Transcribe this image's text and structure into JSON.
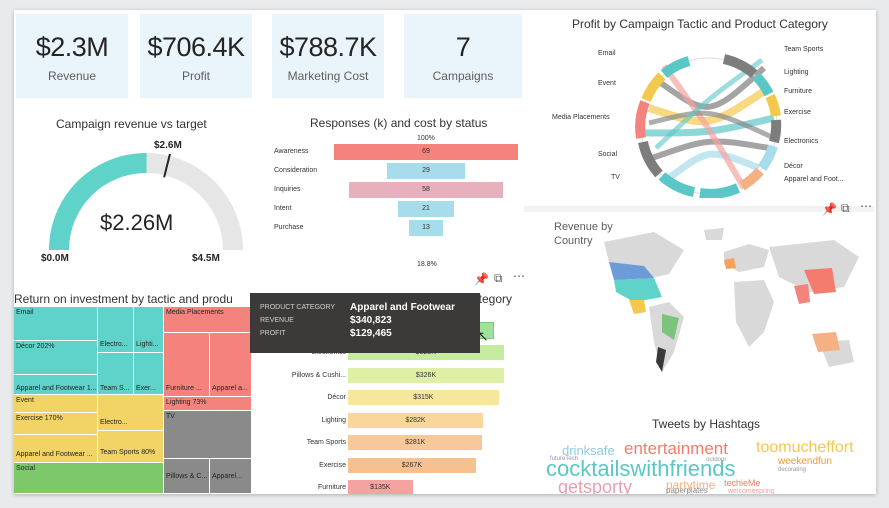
{
  "kpis": [
    {
      "value": "$2.3M",
      "label": "Revenue"
    },
    {
      "value": "$706.4K",
      "label": "Profit"
    },
    {
      "value": "$788.7K",
      "label": "Marketing Cost"
    },
    {
      "value": "7",
      "label": "Campaigns"
    }
  ],
  "gauge": {
    "title": "Campaign revenue vs target",
    "value_label": "$2.26M",
    "target_label": "$2.6M",
    "min_label": "$0.0M",
    "max_label": "$4.5M",
    "value": 2.26,
    "target": 2.6,
    "min": 0,
    "max": 4.5,
    "fill_color": "#5fd3c9",
    "track_color": "#e6e6e6"
  },
  "funnel": {
    "title": "Responses (k) and cost by status",
    "top_label": "100%",
    "bottom_label": "18.8%",
    "stages": [
      {
        "label": "Awareness",
        "value": 69,
        "color": "#f4837d"
      },
      {
        "label": "Consideration",
        "value": 29,
        "color": "#a7dceb"
      },
      {
        "label": "Inquiries",
        "value": 58,
        "color": "#e8b0bd"
      },
      {
        "label": "Intent",
        "value": 21,
        "color": "#a7dceb"
      },
      {
        "label": "Purchase",
        "value": 13,
        "color": "#a7dceb"
      }
    ]
  },
  "chord": {
    "title": "Profit by Campaign Tactic and Product Category",
    "tactics": [
      "Email",
      "Event",
      "Media Placements",
      "Social",
      "TV"
    ],
    "categories": [
      "Team Sports",
      "Lighting",
      "Furniture",
      "Exercise",
      "Electronics",
      "Décor",
      "Apparel and Foot..."
    ]
  },
  "treemap": {
    "title": "Return on investment by tactic and produ",
    "cells": [
      {
        "text": "Email"
      },
      {
        "text": "Décor 202%"
      },
      {
        "text": "Electro..."
      },
      {
        "text": "Lighti..."
      },
      {
        "text": "Apparel and Footwear 1..."
      },
      {
        "text": "Team S..."
      },
      {
        "text": "Exer..."
      },
      {
        "text": "Media Placements"
      },
      {
        "text": "Furniture ..."
      },
      {
        "text": "Apparel a..."
      },
      {
        "text": "Lighting 73%"
      },
      {
        "text": "Event"
      },
      {
        "text": "Exercise 170%"
      },
      {
        "text": "Electro..."
      },
      {
        "text": "Apparel and Footwear ..."
      },
      {
        "text": "Team Sports 80%"
      },
      {
        "text": "TV"
      },
      {
        "text": "Pillows & C..."
      },
      {
        "text": "Apparel..."
      },
      {
        "text": "Social"
      }
    ]
  },
  "barchart": {
    "title_fragment": "category",
    "bars": [
      {
        "label": "Electronics",
        "value": "$325K",
        "color": "#c5eb9e"
      },
      {
        "label": "Pillows & Cushi...",
        "value": "$326K",
        "color": "#dff0a6"
      },
      {
        "label": "Décor",
        "value": "$315K",
        "color": "#f7e79c"
      },
      {
        "label": "Lighting",
        "value": "$282K",
        "color": "#f9d79a"
      },
      {
        "label": "Team Sports",
        "value": "$281K",
        "color": "#f7c89a"
      },
      {
        "label": "Exercise",
        "value": "$267K",
        "color": "#f7c08f"
      },
      {
        "label": "Furniture",
        "value": "$135K",
        "color": "#f4a3a0"
      }
    ]
  },
  "tooltip": {
    "rows": [
      {
        "key": "PRODUCT CATEGORY",
        "value": "Apparel and Footwear"
      },
      {
        "key": "REVENUE",
        "value": "$340,823"
      },
      {
        "key": "PROFIT",
        "value": "$129,465"
      }
    ]
  },
  "map": {
    "title": "Revenue by Country"
  },
  "wordcloud": {
    "title": "Tweets by Hashtags",
    "words": [
      {
        "text": "drinksafe",
        "color": "#8fcbe0"
      },
      {
        "text": "entertainment",
        "color": "#f47c6e"
      },
      {
        "text": "toomucheffort",
        "color": "#f2c94c"
      },
      {
        "text": "futureTech",
        "color": "#9a8fbf"
      },
      {
        "text": "outdoor",
        "color": "#999999"
      },
      {
        "text": "weekendfun",
        "color": "#f29a2e"
      },
      {
        "text": "cocktailswithfriends",
        "color": "#5bc6c6"
      },
      {
        "text": "decorating",
        "color": "#999999"
      },
      {
        "text": "getsporty",
        "color": "#e8a0b0"
      },
      {
        "text": "partytime",
        "color": "#f4b183"
      },
      {
        "text": "techieMe",
        "color": "#f47c6e"
      },
      {
        "text": "paperplates",
        "color": "#888888"
      },
      {
        "text": "welcomespring",
        "color": "#f4a0a0"
      }
    ]
  }
}
